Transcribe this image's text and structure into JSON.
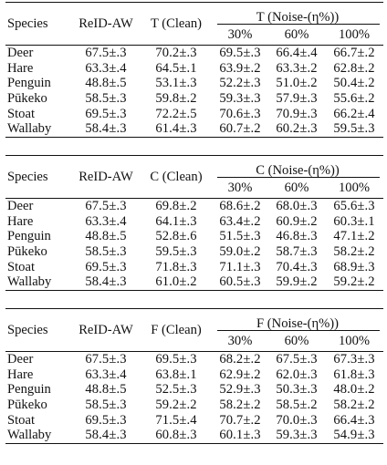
{
  "tables": [
    {
      "header": {
        "species": "Species",
        "reid": "ReID-AW",
        "clean": "T (Clean)",
        "noise": "T (Noise-(η%))",
        "levels": [
          "30%",
          "60%",
          "100%"
        ]
      },
      "rows": [
        {
          "species": "Deer",
          "reid": "67.5±.3",
          "clean": "70.2±.3",
          "n30": "69.5±.3",
          "n60": "66.4±.4",
          "n100": "66.7±.2"
        },
        {
          "species": "Hare",
          "reid": "63.3±.4",
          "clean": "64.5±.1",
          "n30": "63.9±.2",
          "n60": "63.3±.2",
          "n100": "62.8±.2"
        },
        {
          "species": "Penguin",
          "reid": "48.8±.5",
          "clean": "53.1±.3",
          "n30": "52.2±.3",
          "n60": "51.0±.2",
          "n100": "50.4±.2"
        },
        {
          "species": "Pūkeko",
          "reid": "58.5±.3",
          "clean": "59.8±.2",
          "n30": "59.3±.3",
          "n60": "57.9±.3",
          "n100": "55.6±.2"
        },
        {
          "species": "Stoat",
          "reid": "69.5±.3",
          "clean": "72.2±.5",
          "n30": "70.6±.3",
          "n60": "70.9±.3",
          "n100": "66.2±.4"
        },
        {
          "species": "Wallaby",
          "reid": "58.4±.3",
          "clean": "61.4±.3",
          "n30": "60.7±.2",
          "n60": "60.2±.3",
          "n100": "59.5±.3"
        }
      ]
    },
    {
      "header": {
        "species": "Species",
        "reid": "ReID-AW",
        "clean": "C (Clean)",
        "noise": "C (Noise-(η%))",
        "levels": [
          "30%",
          "60%",
          "100%"
        ]
      },
      "rows": [
        {
          "species": "Deer",
          "reid": "67.5±.3",
          "clean": "69.8±.2",
          "n30": "68.6±.2",
          "n60": "68.0±.3",
          "n100": "65.6±.3"
        },
        {
          "species": "Hare",
          "reid": "63.3±.4",
          "clean": "64.1±.3",
          "n30": "63.4±.2",
          "n60": "60.9±.2",
          "n100": "60.3±.1"
        },
        {
          "species": "Penguin",
          "reid": "48.8±.5",
          "clean": "52.8±.6",
          "n30": "51.5±.3",
          "n60": "46.8±.3",
          "n100": "47.1±.2"
        },
        {
          "species": "Pūkeko",
          "reid": "58.5±.3",
          "clean": "59.5±.3",
          "n30": "59.0±.2",
          "n60": "58.7±.3",
          "n100": "58.2±.2"
        },
        {
          "species": "Stoat",
          "reid": "69.5±.3",
          "clean": "71.8±.3",
          "n30": "71.1±.3",
          "n60": "70.4±.3",
          "n100": "68.9±.3"
        },
        {
          "species": "Wallaby",
          "reid": "58.4±.3",
          "clean": "61.0±.2",
          "n30": "60.5±.3",
          "n60": "59.9±.2",
          "n100": "59.2±.2"
        }
      ]
    },
    {
      "header": {
        "species": "Species",
        "reid": "ReID-AW",
        "clean": "F (Clean)",
        "noise": "F (Noise-(η%))",
        "levels": [
          "30%",
          "60%",
          "100%"
        ]
      },
      "rows": [
        {
          "species": "Deer",
          "reid": "67.5±.3",
          "clean": "69.5±.3",
          "n30": "68.2±.2",
          "n60": "67.5±.3",
          "n100": "67.3±.3"
        },
        {
          "species": "Hare",
          "reid": "63.3±.4",
          "clean": "63.8±.1",
          "n30": "62.9±.2",
          "n60": "62.0±.3",
          "n100": "61.8±.3"
        },
        {
          "species": "Penguin",
          "reid": "48.8±.5",
          "clean": "52.5±.3",
          "n30": "52.9±.3",
          "n60": "50.3±.3",
          "n100": "48.0±.2"
        },
        {
          "species": "Pūkeko",
          "reid": "58.5±.3",
          "clean": "59.2±.2",
          "n30": "58.2±.2",
          "n60": "58.5±.2",
          "n100": "58.2±.2"
        },
        {
          "species": "Stoat",
          "reid": "69.5±.3",
          "clean": "71.5±.4",
          "n30": "70.7±.2",
          "n60": "70.0±.3",
          "n100": "66.4±.3"
        },
        {
          "species": "Wallaby",
          "reid": "58.4±.3",
          "clean": "60.8±.3",
          "n30": "60.1±.3",
          "n60": "59.3±.3",
          "n100": "54.9±.3"
        }
      ]
    }
  ]
}
